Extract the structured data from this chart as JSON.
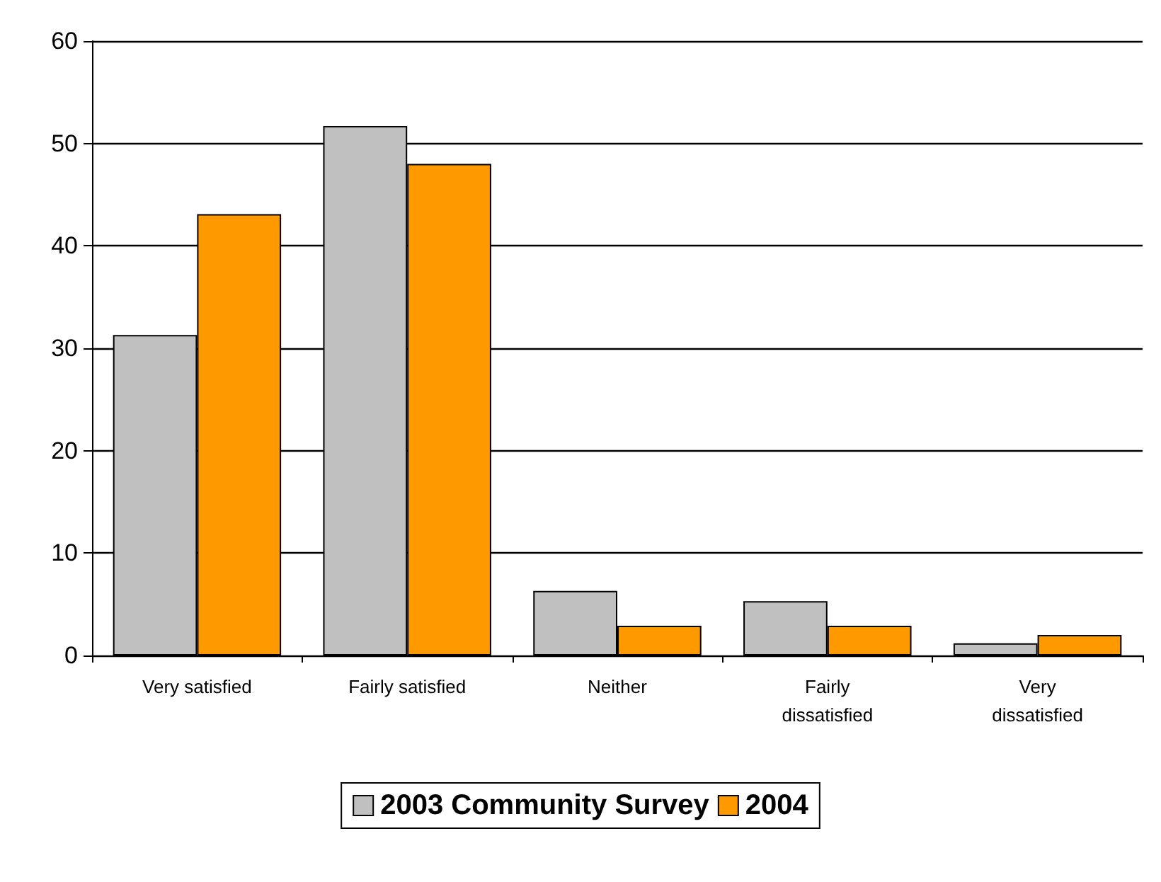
{
  "chart_data": {
    "type": "bar",
    "categories": [
      "Very satisfied",
      "Fairly satisfied",
      "Neither",
      "Fairly\ndissatisfied",
      "Very\ndissatisfied"
    ],
    "series": [
      {
        "name": "2003 Community Survey",
        "color": "#c0c0c0",
        "values": [
          31.3,
          51.7,
          6.3,
          5.3,
          1.2
        ]
      },
      {
        "name": "2004",
        "color": "#ff9900",
        "values": [
          43.1,
          48,
          2.9,
          2.9,
          2
        ]
      }
    ],
    "ylim": [
      0,
      60
    ],
    "yticks": [
      0,
      10,
      20,
      30,
      40,
      50,
      60
    ],
    "grid": "y",
    "legend": "bottom"
  }
}
